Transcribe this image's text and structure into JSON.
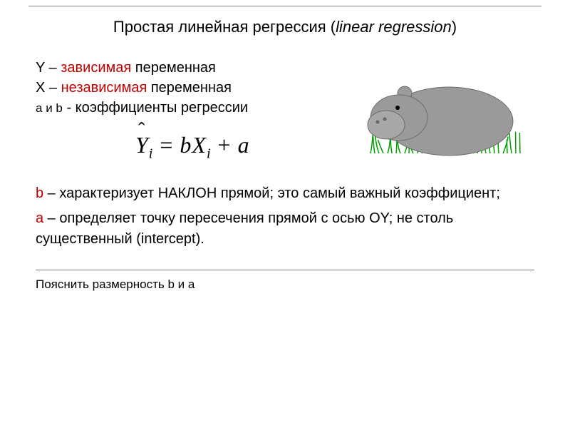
{
  "title": {
    "main": "Простая линейная регрессия",
    "paren_open": " (",
    "italic": "linear regression",
    "paren_close": ")"
  },
  "defs": {
    "line1_var": "Y",
    "line1_dash": " – ",
    "line1_key": "зависимая",
    "line1_rest": " переменная",
    "line2_var": "X",
    "line2_dash": " – ",
    "line2_key": "независимая",
    "line2_rest": " переменная",
    "line3_var": "a",
    "line3_mid": " и ",
    "line3_var2": "b",
    "line3_rest": " - коэффициенты регрессии"
  },
  "equation": {
    "Y": "Y",
    "sub": "i",
    "eq": " = ",
    "b": "b",
    "X": "X",
    "sub2": "i",
    "plus": " + ",
    "a": "a"
  },
  "body": {
    "b_pref": "b",
    "b_dash": " – характеризует ",
    "b_bold": "НАКЛОН",
    "b_rest": " прямой; это самый важный коэффициент;",
    "a_pref": "a",
    "a_rest": " – определяет точку пересечения прямой с осью OY; не столь существенный (intercept)."
  },
  "footer": "Пояснить размерность b и a",
  "hippo": {
    "body_fill": "#9a9a9a",
    "body_stroke": "#6b6b6b",
    "eye_fill": "#000000",
    "nostril_fill": "#666666",
    "face_fill": "#a8a8a8",
    "grass_stroke": "#00a000"
  }
}
